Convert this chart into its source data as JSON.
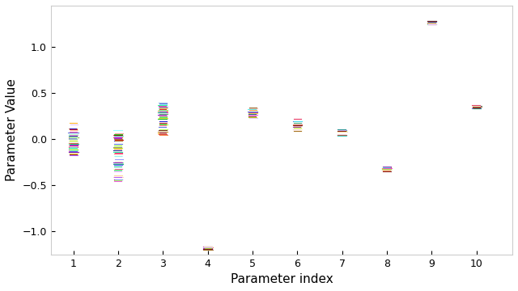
{
  "title": "",
  "xlabel": "Parameter index",
  "ylabel": "Parameter Value",
  "xlim": [
    0.5,
    10.8
  ],
  "ylim": [
    -1.25,
    1.45
  ],
  "yticks": [
    -1.0,
    -0.5,
    0.0,
    0.5,
    1.0
  ],
  "xticks": [
    1,
    2,
    3,
    4,
    5,
    6,
    7,
    8,
    9,
    10
  ],
  "param_centers": [
    1.0,
    2.0,
    3.0,
    4.0,
    5.0,
    6.0,
    7.0,
    8.0,
    9.0,
    10.0
  ],
  "param_means": [
    0.0,
    -0.18,
    0.22,
    -1.18,
    0.28,
    0.15,
    0.07,
    -0.32,
    1.26,
    0.35
  ],
  "param_spread": [
    0.18,
    0.28,
    0.18,
    0.02,
    0.06,
    0.08,
    0.04,
    0.03,
    0.02,
    0.02
  ],
  "n_lines": 50,
  "seed": 42,
  "background_color": "#ffffff",
  "figsize": [
    6.4,
    3.6
  ],
  "dpi": 100
}
